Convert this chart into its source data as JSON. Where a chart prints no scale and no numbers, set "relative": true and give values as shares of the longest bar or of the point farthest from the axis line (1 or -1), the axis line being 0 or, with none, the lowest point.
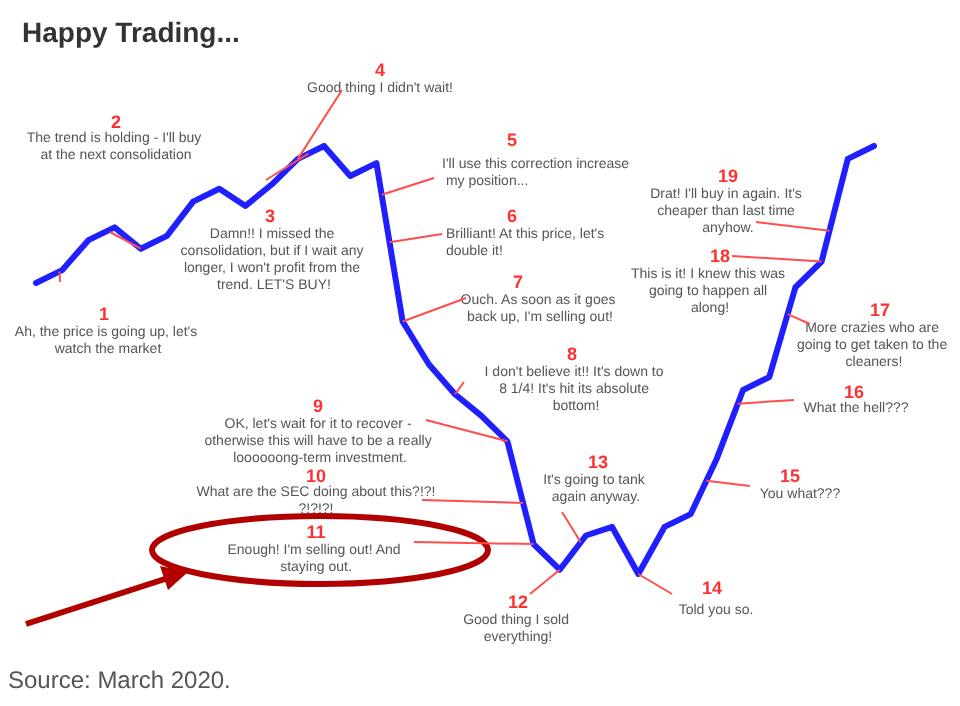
{
  "chart_data": {
    "type": "line",
    "title": "Happy Trading...",
    "relative": true,
    "color": "#1f1fff",
    "marker": "none",
    "grid": false,
    "categories": [
      null,
      null,
      null,
      null,
      null,
      null,
      null,
      null,
      null,
      null,
      null,
      null,
      null,
      null,
      null,
      null,
      null,
      null,
      null,
      null,
      null,
      null,
      null,
      null,
      null,
      null,
      null,
      null,
      null,
      null,
      null,
      null,
      null
    ],
    "values": [
      0.68,
      0.71,
      0.78,
      0.81,
      0.76,
      0.79,
      0.87,
      0.9,
      0.86,
      0.91,
      0.97,
      1.0,
      0.93,
      0.96,
      0.59,
      0.49,
      0.42,
      0.37,
      0.31,
      0.07,
      0.01,
      0.09,
      0.11,
      0,
      0.11,
      0.14,
      0.27,
      0.43,
      0.46,
      0.67,
      0.73,
      0.97,
      1.0
    ],
    "annotations": [
      "1",
      "Ah, the price is going up, let's watch the market",
      "2",
      "The trend is holding - I'll buy at the next consolidation",
      "3",
      "Damn!! I missed the consolidation, but if I wait any longer, I won't profit from the trend. LET'S BUY!",
      "4",
      "Good thing I didn't wait!",
      "5",
      "I'll use this correction increase my position...",
      "6",
      "Brilliant! At this price, let's double it!",
      "7",
      "Ouch. As soon as it goes back up, I'm selling out!",
      "8",
      "I don't believe it!! It's down to 8 1/4! It's hit its absolute bottom!",
      "9",
      "OK, let's wait for it to recover - otherwise this will have to be a really loooooong-term investment.",
      "10",
      "What are the SEC doing about this?!?!?!?!?!",
      "11",
      "Enough! I'm selling out! And staying out.",
      "12",
      "Good thing I sold everything!",
      "13",
      "It's going to tank again anyway.",
      "14",
      "Told you so.",
      "15",
      "You what???",
      "16",
      "What the hell???",
      "17",
      "More crazies who are going to get taken to the cleaners!",
      "18",
      "This is it! I knew this was going to happen all along!",
      "19",
      "Drat! I'll buy in again. It's cheaper than last time anyhow.",
      "Source: March 2020."
    ]
  }
}
